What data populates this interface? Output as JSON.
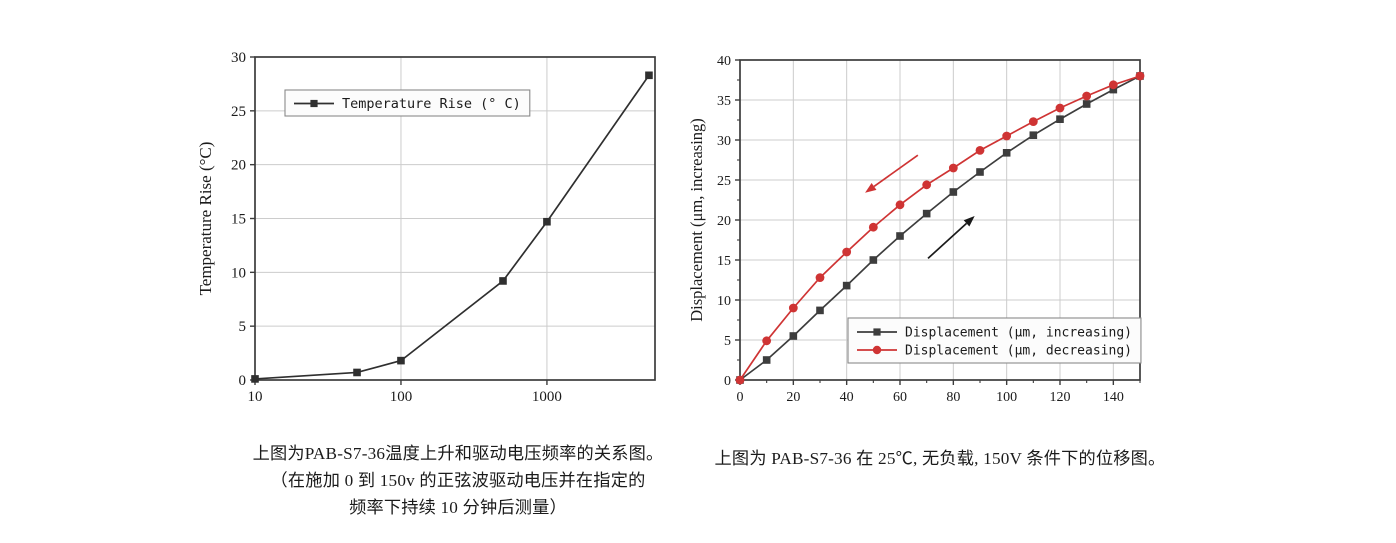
{
  "page": {
    "background": "#ffffff"
  },
  "colors": {
    "grid": "#cccccc",
    "axis": "#3c3c3c",
    "text": "#1b1b1b",
    "black_series": "#3d3d3d",
    "red_series": "#cf3434",
    "legend_border": "#8a8a8a",
    "legend_fill": "#fcfcfc"
  },
  "chart_data": [
    {
      "id": "temperature-rise",
      "type": "line",
      "title": "",
      "xlabel": "",
      "ylabel": "Temperature Rise (°C)",
      "x_scale": "log",
      "xlim": [
        10,
        5500
      ],
      "ylim": [
        0,
        30
      ],
      "xticks": [
        10,
        100,
        1000
      ],
      "yticks": [
        0,
        5,
        10,
        15,
        20,
        25,
        30
      ],
      "grid": true,
      "x": [
        10,
        50,
        100,
        500,
        1000,
        5000
      ],
      "series": [
        {
          "name": "Temperature Rise (° C)",
          "marker": "square",
          "color": "#2f2f2f",
          "values": [
            0.1,
            0.7,
            1.8,
            9.2,
            14.7,
            28.3
          ]
        }
      ],
      "legend": {
        "position": "upper-left-inside",
        "entries": [
          "Temperature Rise (° C)"
        ]
      }
    },
    {
      "id": "displacement-hysteresis",
      "type": "line",
      "title": "",
      "xlabel": "",
      "ylabel": "Displacement (μm, increasing)",
      "x_scale": "linear",
      "xlim": [
        0,
        150
      ],
      "ylim": [
        0,
        40
      ],
      "xticks": [
        0,
        20,
        40,
        60,
        80,
        100,
        120,
        140
      ],
      "x_minor_step": 10,
      "yticks": [
        0,
        5,
        10,
        15,
        20,
        25,
        30,
        35,
        40
      ],
      "y_minor_step": 2.5,
      "grid": true,
      "x": [
        0,
        10,
        20,
        30,
        40,
        50,
        60,
        70,
        80,
        90,
        100,
        110,
        120,
        130,
        140,
        150
      ],
      "series": [
        {
          "name": "Displacement (μm, increasing)",
          "marker": "square",
          "color": "#3d3d3d",
          "values": [
            0,
            2.5,
            5.5,
            8.7,
            11.8,
            15.0,
            18.0,
            20.8,
            23.5,
            26.0,
            28.4,
            30.6,
            32.6,
            34.5,
            36.3,
            38.0
          ]
        },
        {
          "name": "Displacement (μm, decreasing)",
          "marker": "circle",
          "color": "#cf3434",
          "values": [
            0,
            4.9,
            9.0,
            12.8,
            16.0,
            19.1,
            21.9,
            24.4,
            26.5,
            28.7,
            30.5,
            32.3,
            34.0,
            35.5,
            36.9,
            38.0
          ]
        }
      ],
      "legend": {
        "position": "lower-right-inside",
        "entries": [
          "Displacement (μm, increasing)",
          "Displacement (μm, decreasing)"
        ]
      },
      "annotations": [
        {
          "type": "arrow",
          "color": "#cf3434",
          "from_xy": [
            66.7,
            28.1
          ],
          "to_xy": [
            46.9,
            23.4
          ]
        },
        {
          "type": "arrow",
          "color": "#1a1a1a",
          "from_xy": [
            70.5,
            15.2
          ],
          "to_xy": [
            88.0,
            20.5
          ]
        }
      ]
    }
  ],
  "captions": {
    "left_line1": "上图为PAB-S7-36温度上升和驱动电压频率的关系图。",
    "left_line2": "（在施加 0 到 150v 的正弦波驱动电压并在指定的",
    "left_line3": "频率下持续 10 分钟后测量）",
    "right_line1": "上图为 PAB-S7-36 在 25℃, 无负载, 150V 条件下的位移图。"
  }
}
